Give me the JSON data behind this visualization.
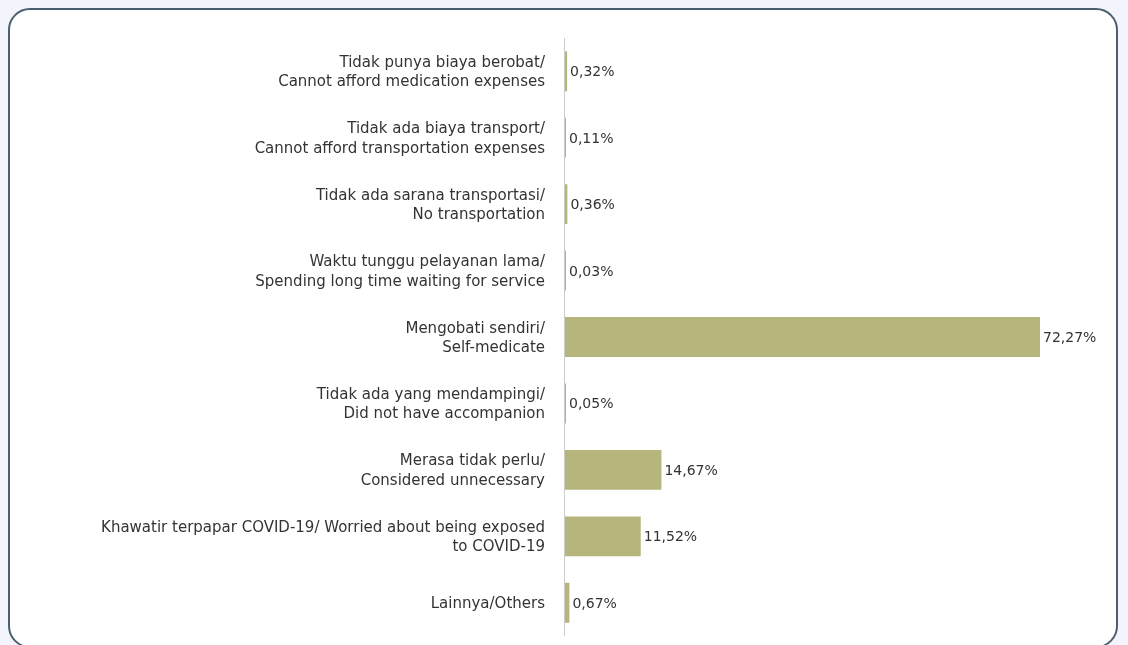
{
  "chart_data": {
    "type": "bar",
    "orientation": "horizontal",
    "categories": [
      "Tidak punya biaya berobat/\nCannot afford medication expenses",
      "Tidak ada biaya transport/\nCannot afford transportation expenses",
      "Tidak ada sarana transportasi/\nNo transportation",
      "Waktu tunggu pelayanan lama/\nSpending long time waiting for service",
      "Mengobati sendiri/\nSelf-medicate",
      "Tidak ada yang mendampingi/\nDid not have accompanion",
      "Merasa tidak perlu/\nConsidered unnecessary",
      "Khawatir terpapar COVID-19/ Worried about being exposed\nto COVID-19",
      "Lainnya/Others"
    ],
    "values": [
      0.32,
      0.11,
      0.36,
      0.03,
      72.27,
      0.05,
      14.67,
      11.52,
      0.67
    ],
    "value_labels": [
      "0,32%",
      "0,11%",
      "0,36%",
      "0,03%",
      "72,27%",
      "0,05%",
      "14,67%",
      "11,52%",
      "0,67%"
    ],
    "color": "#b5b57c",
    "grid": false,
    "legend": false
  }
}
